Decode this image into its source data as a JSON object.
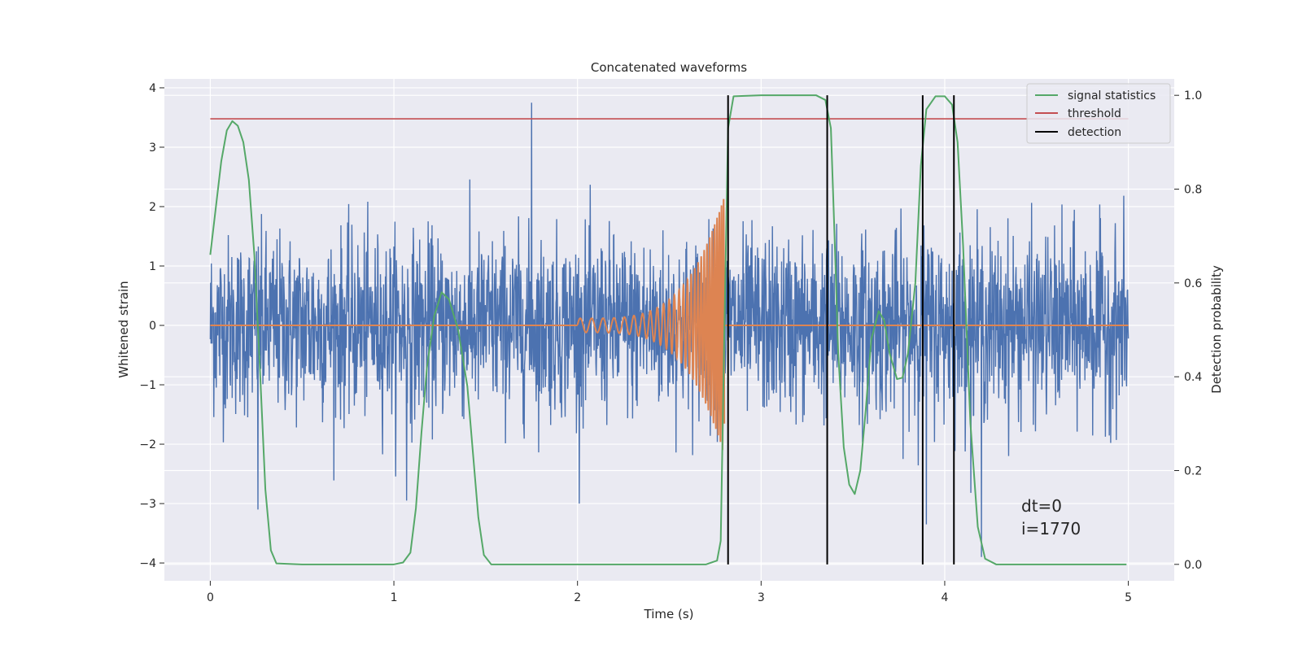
{
  "chart_data": {
    "type": "line",
    "title": "Concatenated waveforms",
    "xlabel": "Time (s)",
    "ylabel_left": "Whitened strain",
    "ylabel_right": "Detection probability",
    "xlim": [
      -0.25,
      5.25
    ],
    "ylim_left": [
      -4.3,
      4.15
    ],
    "ylim_right": [
      -0.035,
      1.035
    ],
    "x_ticks": [
      0,
      1,
      2,
      3,
      4,
      5
    ],
    "y_ticks_left": [
      -4,
      -3,
      -2,
      -1,
      0,
      1,
      2,
      3,
      4
    ],
    "y_ticks_right": [
      0.0,
      0.2,
      0.4,
      0.6,
      0.8,
      1.0
    ],
    "grid": true,
    "legend_position": "top-right",
    "series": [
      {
        "name": "",
        "kind": "noise",
        "color": "#4c72b0",
        "x_range": [
          0,
          5
        ],
        "std": 0.75,
        "notable_peaks": [
          {
            "x": 1.75,
            "y": 3.75
          },
          {
            "x": 4.2,
            "y": -3.9
          },
          {
            "x": 3.9,
            "y": -3.35
          },
          {
            "x": 0.26,
            "y": -3.1
          },
          {
            "x": 1.07,
            "y": -2.95
          }
        ]
      },
      {
        "name": "",
        "kind": "chirp",
        "color": "#dd8452",
        "flat_ranges": [
          [
            0,
            2.0
          ],
          [
            2.8,
            5.0
          ]
        ],
        "chirp_start": 2.0,
        "chirp_end": 2.8,
        "amp_start": 0.12,
        "amp_end": 2.2,
        "freq_start": 16,
        "freq_end": 90
      },
      {
        "name": "signal statistics",
        "color": "#55a868",
        "points": [
          [
            0,
            0.66
          ],
          [
            0.03,
            0.76
          ],
          [
            0.06,
            0.86
          ],
          [
            0.09,
            0.925
          ],
          [
            0.12,
            0.945
          ],
          [
            0.15,
            0.935
          ],
          [
            0.18,
            0.9
          ],
          [
            0.21,
            0.82
          ],
          [
            0.24,
            0.66
          ],
          [
            0.27,
            0.42
          ],
          [
            0.3,
            0.16
          ],
          [
            0.33,
            0.03
          ],
          [
            0.36,
            0.002
          ],
          [
            0.5,
            0.0
          ],
          [
            1.0,
            0.0
          ],
          [
            1.05,
            0.004
          ],
          [
            1.09,
            0.025
          ],
          [
            1.12,
            0.12
          ],
          [
            1.15,
            0.28
          ],
          [
            1.18,
            0.42
          ],
          [
            1.22,
            0.53
          ],
          [
            1.26,
            0.58
          ],
          [
            1.3,
            0.565
          ],
          [
            1.35,
            0.5
          ],
          [
            1.4,
            0.38
          ],
          [
            1.43,
            0.24
          ],
          [
            1.46,
            0.1
          ],
          [
            1.49,
            0.02
          ],
          [
            1.53,
            0.0
          ],
          [
            2.0,
            0.0
          ],
          [
            2.7,
            0.0
          ],
          [
            2.76,
            0.008
          ],
          [
            2.78,
            0.05
          ],
          [
            2.8,
            0.5
          ],
          [
            2.82,
            0.93
          ],
          [
            2.85,
            0.998
          ],
          [
            3.0,
            1.0
          ],
          [
            3.3,
            1.0
          ],
          [
            3.35,
            0.99
          ],
          [
            3.38,
            0.93
          ],
          [
            3.4,
            0.7
          ],
          [
            3.42,
            0.45
          ],
          [
            3.45,
            0.25
          ],
          [
            3.48,
            0.17
          ],
          [
            3.51,
            0.15
          ],
          [
            3.54,
            0.2
          ],
          [
            3.57,
            0.33
          ],
          [
            3.6,
            0.48
          ],
          [
            3.64,
            0.54
          ],
          [
            3.67,
            0.52
          ],
          [
            3.7,
            0.45
          ],
          [
            3.74,
            0.395
          ],
          [
            3.77,
            0.398
          ],
          [
            3.8,
            0.45
          ],
          [
            3.84,
            0.6
          ],
          [
            3.87,
            0.85
          ],
          [
            3.9,
            0.97
          ],
          [
            3.95,
            0.998
          ],
          [
            4.0,
            0.998
          ],
          [
            4.04,
            0.98
          ],
          [
            4.07,
            0.9
          ],
          [
            4.1,
            0.68
          ],
          [
            4.14,
            0.3
          ],
          [
            4.18,
            0.08
          ],
          [
            4.22,
            0.012
          ],
          [
            4.28,
            0.0
          ],
          [
            4.5,
            0.0
          ],
          [
            4.99,
            0.0
          ]
        ]
      },
      {
        "name": "threshold",
        "color": "#c44e52",
        "y": 0.95,
        "x_range": [
          0,
          5
        ]
      }
    ],
    "detections": {
      "name": "detection",
      "color": "#000000",
      "x": [
        2.82,
        3.36,
        3.88,
        4.05
      ],
      "y_range": [
        0,
        1
      ]
    },
    "annotations": [
      "dt=0",
      "i=1770"
    ]
  }
}
